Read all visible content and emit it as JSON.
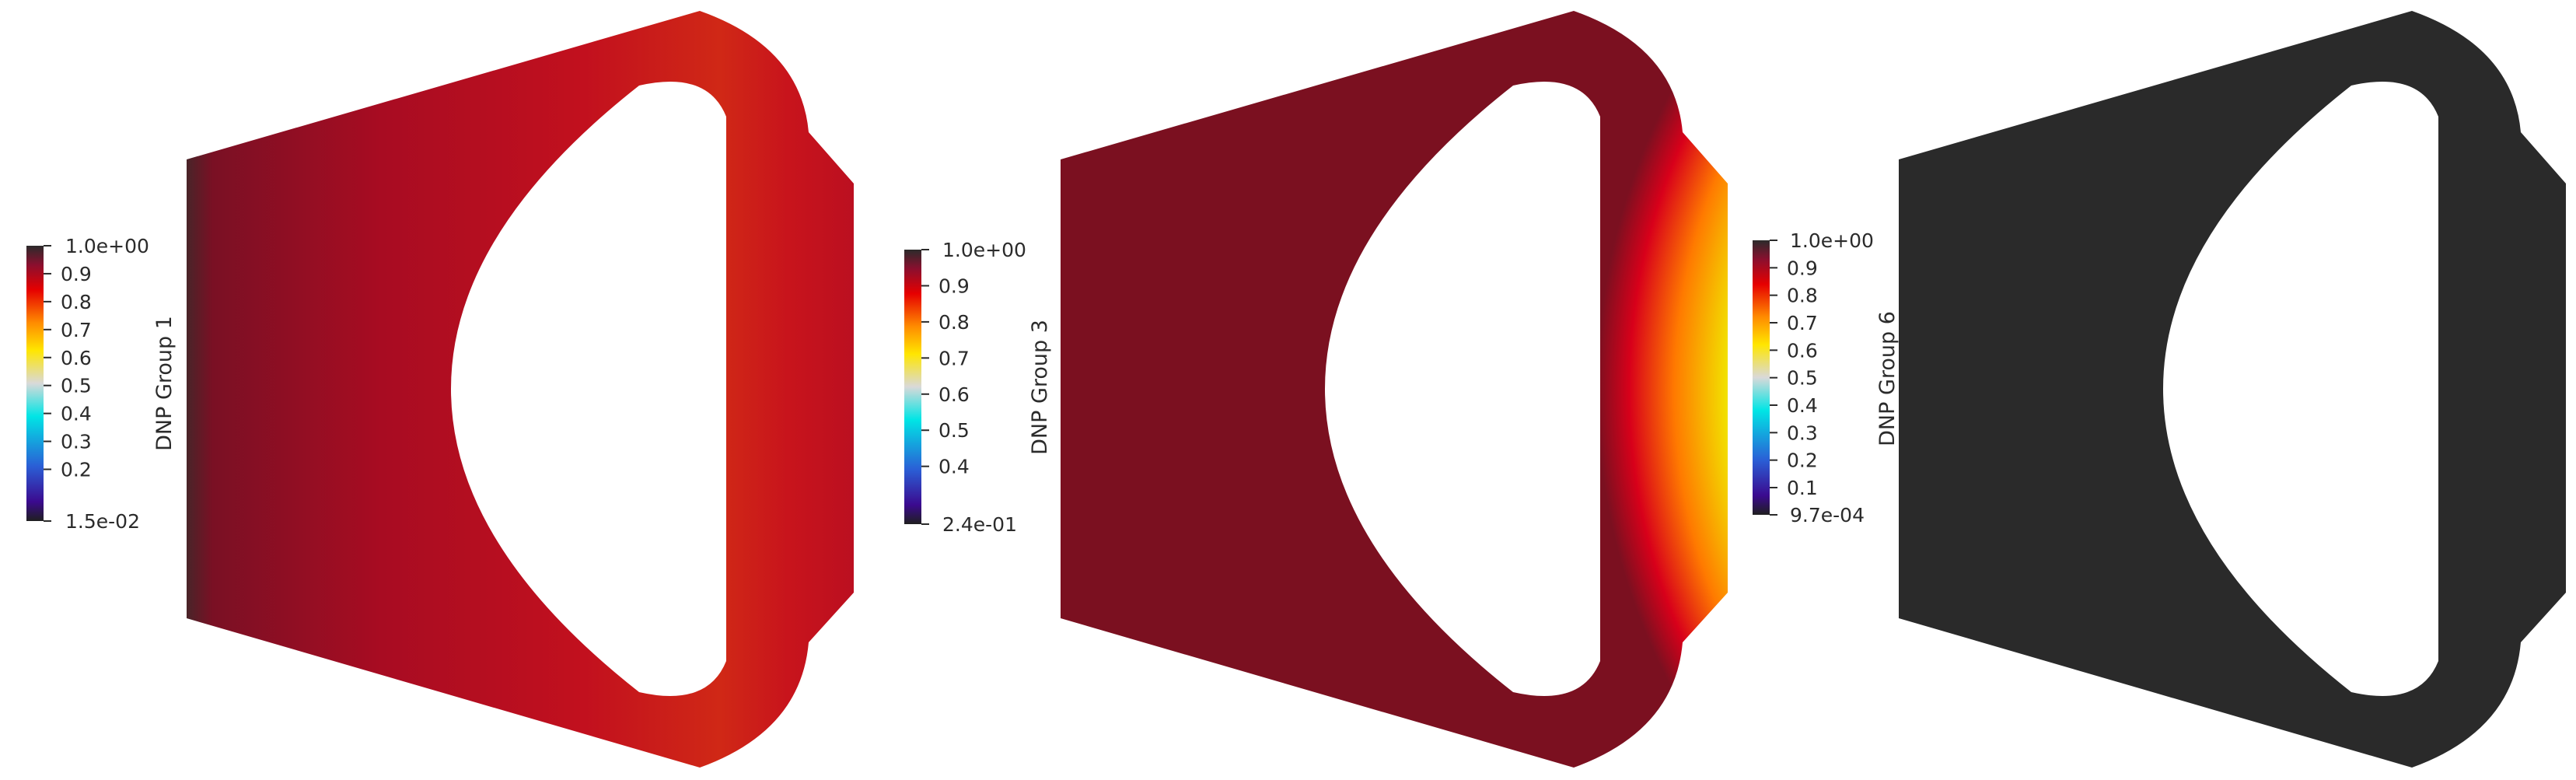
{
  "panels": [
    {
      "title": "DNP Group 1",
      "min_label": "1.5e-02",
      "max_label": "1.0e+00",
      "range": [
        0.015,
        1.0
      ],
      "ticks": [
        "0.9",
        "0.8",
        "0.7",
        "0.6",
        "0.5",
        "0.4",
        "0.3",
        "0.2"
      ],
      "tick_values": [
        0.9,
        0.8,
        0.7,
        0.6,
        0.5,
        0.4,
        0.3,
        0.2
      ]
    },
    {
      "title": "DNP Group 3",
      "min_label": "2.4e-01",
      "max_label": "1.0e+00",
      "range": [
        0.24,
        1.0
      ],
      "ticks": [
        "0.9",
        "0.8",
        "0.7",
        "0.6",
        "0.5",
        "0.4"
      ],
      "tick_values": [
        0.9,
        0.8,
        0.7,
        0.6,
        0.5,
        0.4
      ]
    },
    {
      "title": "DNP Group 6",
      "min_label": "9.7e-04",
      "max_label": "1.0e+00",
      "range": [
        0.00097,
        1.0
      ],
      "ticks": [
        "0.9",
        "0.8",
        "0.7",
        "0.6",
        "0.5",
        "0.4",
        "0.3",
        "0.2",
        "0.1"
      ],
      "tick_values": [
        0.9,
        0.8,
        0.7,
        0.6,
        0.5,
        0.4,
        0.3,
        0.2,
        0.1
      ]
    }
  ],
  "colormap": [
    "#ffffff",
    "#1f1f1f",
    "#3b0a8f",
    "#2a5fd6",
    "#00e5e5",
    "#d9d9d9",
    "#ffe600",
    "#ff8c00",
    "#e60000",
    "#8b0f2e",
    "#2b2b2b"
  ]
}
